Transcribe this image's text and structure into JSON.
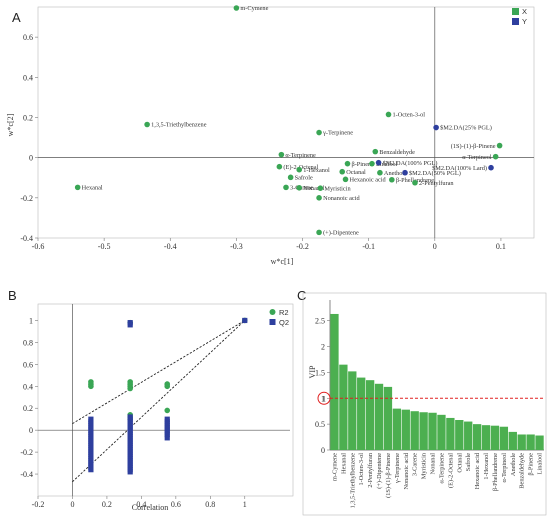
{
  "figure": {
    "panel_letters": [
      "A",
      "B",
      "C"
    ]
  },
  "chart_data": [
    {
      "panel": "A",
      "type": "scatter",
      "xlabel": "w*c[1]",
      "ylabel": "w*c[2]",
      "xlim": [
        -0.6,
        0.15
      ],
      "ylim": [
        -0.4,
        0.75
      ],
      "xticks": [
        "-0.6",
        "-0.5",
        "-0.4",
        "-0.3",
        "-0.2",
        "-0.1",
        "0",
        "0.1"
      ],
      "yticks": [
        "-0.4",
        "-0.2",
        "0",
        "0.2",
        "0.4",
        "0.6"
      ],
      "legend": {
        "position": "top-right",
        "items": [
          {
            "name": "X",
            "color": "#3aa655"
          },
          {
            "name": "Y",
            "color": "#2e3f9e"
          }
        ]
      },
      "series": [
        {
          "name": "X",
          "color": "#3aa655",
          "points": [
            {
              "label": "m-Cymene",
              "x": -0.3,
              "y": 0.745
            },
            {
              "label": "1,3,5-Triethylbenzene",
              "x": -0.435,
              "y": 0.165
            },
            {
              "label": "1-Octen-3-ol",
              "x": -0.07,
              "y": 0.215
            },
            {
              "label": "γ-Terpinene",
              "x": -0.175,
              "y": 0.125
            },
            {
              "label": "(1S)-(1)-β-Pinene",
              "x": 0.098,
              "y": 0.06
            },
            {
              "label": "α-Terpineol",
              "x": 0.092,
              "y": 0.005
            },
            {
              "label": "Benzaldehyde",
              "x": -0.09,
              "y": 0.03
            },
            {
              "label": "α-Terpinene",
              "x": -0.232,
              "y": 0.015
            },
            {
              "label": "β-Pinene",
              "x": -0.132,
              "y": -0.03
            },
            {
              "label": "Linalool",
              "x": -0.095,
              "y": -0.03
            },
            {
              "label": "(E)-2-Octenal",
              "x": -0.235,
              "y": -0.045
            },
            {
              "label": "1-Hexanol",
              "x": -0.205,
              "y": -0.06
            },
            {
              "label": "Octanal",
              "x": -0.14,
              "y": -0.07
            },
            {
              "label": "Anethole",
              "x": -0.083,
              "y": -0.075
            },
            {
              "label": "Safrole",
              "x": -0.218,
              "y": -0.098
            },
            {
              "label": "Hexanoic acid",
              "x": -0.135,
              "y": -0.108
            },
            {
              "label": "β-Phellandrene",
              "x": -0.065,
              "y": -0.11
            },
            {
              "label": "3-Carene",
              "x": -0.225,
              "y": -0.148
            },
            {
              "label": "Nonanal",
              "x": -0.205,
              "y": -0.15
            },
            {
              "label": "Myristicin",
              "x": -0.173,
              "y": -0.152
            },
            {
              "label": "2-Pentylfuran",
              "x": -0.03,
              "y": -0.125
            },
            {
              "label": "Nonanoic acid",
              "x": -0.175,
              "y": -0.2
            },
            {
              "label": "(+)-Dipentene",
              "x": -0.175,
              "y": -0.372
            },
            {
              "label": "Hexanal",
              "x": -0.54,
              "y": -0.148
            }
          ]
        },
        {
          "name": "Y",
          "color": "#2e3f9e",
          "points": [
            {
              "label": "$M2.DA(25% PGL)",
              "x": 0.002,
              "y": 0.15
            },
            {
              "label": "$M2.DA(100% PGL)",
              "x": -0.085,
              "y": -0.025
            },
            {
              "label": "$M2.DA(50% PGL)",
              "x": -0.045,
              "y": -0.075
            },
            {
              "label": "$M2.DA(100% Lard)",
              "x": 0.085,
              "y": -0.05
            }
          ]
        }
      ]
    },
    {
      "panel": "B",
      "type": "scatter",
      "xlabel": "Correlation",
      "ylabel": "",
      "xlim": [
        -0.2,
        1.1
      ],
      "ylim": [
        -0.6,
        1.15
      ],
      "xticks": [
        "-0.2",
        "0",
        "0.2",
        "0.4",
        "0.6",
        "0.8",
        "1"
      ],
      "yticks": [
        "-0.4",
        "-0.2",
        "0",
        "0.2",
        "0.4",
        "0.6",
        "0.8",
        "1"
      ],
      "legend": {
        "position": "top-right",
        "items": [
          {
            "name": "R2",
            "color": "#3aa655"
          },
          {
            "name": "Q2",
            "color": "#2e3f9e"
          }
        ]
      },
      "series": [
        {
          "name": "R2",
          "color": "#3aa655",
          "marker": "circle",
          "x": [
            0.107,
            0.107,
            0.107,
            0.335,
            0.335,
            0.335,
            0.335,
            0.335,
            0.335,
            0.335,
            0.335,
            0.55,
            0.55,
            0.55,
            1.0
          ],
          "y": [
            0.44,
            0.42,
            0.4,
            0.44,
            0.42,
            0.4,
            0.38,
            0.14,
            0.12,
            0.1,
            0.98,
            0.42,
            0.4,
            0.18,
            1.0
          ]
        },
        {
          "name": "Q2",
          "color": "#2e3f9e",
          "marker": "square",
          "x": [
            0.107,
            0.107,
            0.107,
            0.107,
            0.107,
            0.107,
            0.107,
            0.107,
            0.107,
            0.107,
            0.107,
            0.107,
            0.107,
            0.107,
            0.107,
            0.107,
            0.107,
            0.107,
            0.107,
            0.107,
            0.107,
            0.107,
            0.107,
            0.107,
            0.335,
            0.335,
            0.335,
            0.335,
            0.335,
            0.335,
            0.335,
            0.335,
            0.335,
            0.335,
            0.335,
            0.335,
            0.335,
            0.335,
            0.335,
            0.335,
            0.335,
            0.335,
            0.335,
            0.335,
            0.335,
            0.335,
            0.335,
            0.335,
            0.335,
            0.335,
            0.335,
            0.335,
            0.55,
            0.55,
            0.55,
            0.55,
            0.55,
            0.55,
            0.55,
            0.55,
            0.55,
            1.0
          ],
          "y": [
            0.1,
            0.08,
            0.06,
            0.04,
            0.02,
            0.0,
            -0.02,
            -0.04,
            -0.06,
            -0.08,
            -0.1,
            -0.12,
            -0.14,
            -0.16,
            -0.18,
            -0.2,
            -0.22,
            -0.24,
            -0.26,
            -0.28,
            -0.3,
            -0.32,
            -0.34,
            -0.36,
            0.12,
            0.1,
            0.08,
            0.06,
            0.04,
            0.02,
            0.0,
            -0.02,
            -0.04,
            -0.06,
            -0.08,
            -0.1,
            -0.12,
            -0.14,
            -0.16,
            -0.18,
            -0.2,
            -0.22,
            -0.24,
            -0.26,
            -0.28,
            -0.3,
            -0.32,
            -0.34,
            -0.36,
            -0.38,
            0.98,
            0.96,
            0.1,
            0.08,
            0.06,
            0.04,
            0.02,
            0.0,
            -0.02,
            -0.04,
            -0.07,
            1.0
          ]
        }
      ],
      "regression_lines": [
        {
          "name": "R2",
          "intercept": 0.06,
          "end": [
            1.0,
            1.0
          ]
        },
        {
          "name": "Q2",
          "intercept": -0.47,
          "end": [
            1.0,
            1.0
          ]
        }
      ]
    },
    {
      "panel": "C",
      "type": "bar",
      "ylabel": "VIP",
      "ylim": [
        0,
        2.9
      ],
      "yticks": [
        "0",
        "0.5",
        "1",
        "1.5",
        "2",
        "2.5"
      ],
      "threshold": 1,
      "threshold_label": "1",
      "categories": [
        "m-Cymene",
        "Hexanal",
        "1,3,5-Triethylbenzene",
        "1-Octen-3-ol",
        "2-Pentylfuran",
        "(+)-Dipentene",
        "(1S)-(1)-β-Pinene",
        "γ-Terpinene",
        "Nonanoic acid",
        "3-Carene",
        "Myristicin",
        "Nonanal",
        "α-Terpinene",
        "(E)-2-Octenal",
        "Octanal",
        "Safrole",
        "Hexanoic acid",
        "1-Hexanol",
        "β-Phellandrene",
        "α-Terpineol",
        "Anethole",
        "Benzaldehyde",
        "β-Pinene",
        "Linalool"
      ],
      "values": [
        2.63,
        1.65,
        1.52,
        1.4,
        1.35,
        1.28,
        1.22,
        0.8,
        0.78,
        0.75,
        0.73,
        0.72,
        0.68,
        0.62,
        0.58,
        0.55,
        0.5,
        0.48,
        0.47,
        0.45,
        0.35,
        0.3,
        0.3,
        0.28
      ],
      "bar_color": "#4caf50"
    }
  ]
}
